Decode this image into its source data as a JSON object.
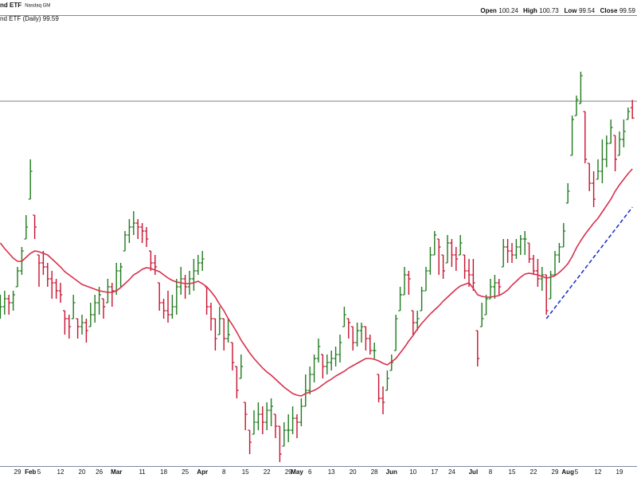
{
  "chart_data": {
    "type": "ohlc",
    "title": "nd ETF",
    "subtitle": "Nasdaq GM",
    "legend_label": "nd ETF (Daily) 99.59",
    "quote": [
      {
        "label": "Open",
        "value": 100.24
      },
      {
        "label": "High",
        "value": 100.73
      },
      {
        "label": "Low",
        "value": 99.54
      },
      {
        "label": "Close",
        "value": 99.59
      }
    ],
    "ylim": [
      78,
      106
    ],
    "up_color": "#1f7a1f",
    "down_color": "#c8102e",
    "categories": [
      null,
      null,
      null,
      null,
      "29",
      null,
      null,
      "Feb",
      null,
      "5",
      null,
      null,
      null,
      null,
      "12",
      null,
      null,
      null,
      null,
      "20",
      null,
      null,
      null,
      "26",
      null,
      null,
      null,
      "Mar",
      null,
      null,
      null,
      null,
      null,
      "11",
      null,
      null,
      null,
      null,
      "18",
      null,
      null,
      null,
      null,
      "25",
      null,
      null,
      null,
      "Apr",
      null,
      null,
      null,
      null,
      "8",
      null,
      null,
      null,
      null,
      "15",
      null,
      null,
      null,
      null,
      "22",
      null,
      null,
      null,
      null,
      "29",
      null,
      "May",
      null,
      null,
      "6",
      null,
      null,
      null,
      null,
      "13",
      null,
      null,
      null,
      null,
      "20",
      null,
      null,
      null,
      null,
      "28",
      null,
      null,
      null,
      "Jun",
      null,
      null,
      null,
      null,
      "10",
      null,
      null,
      null,
      null,
      "17",
      null,
      null,
      null,
      "24",
      null,
      null,
      null,
      null,
      "Jul",
      null,
      null,
      null,
      "8",
      null,
      null,
      null,
      null,
      "15",
      null,
      null,
      null,
      null,
      "22",
      null,
      null,
      null,
      null,
      "29",
      null,
      null,
      "Aug",
      null,
      "5",
      null,
      null,
      null,
      null,
      "12",
      null,
      null,
      null,
      null,
      "19",
      null,
      null,
      null
    ],
    "open": [
      87.5,
      87.75,
      88.25,
      88,
      89,
      90,
      92,
      94.5,
      93.5,
      91,
      90.5,
      90.25,
      89.5,
      89.25,
      88.75,
      87.5,
      87,
      87,
      87,
      86.5,
      86.75,
      86.5,
      87.25,
      88,
      88.25,
      88,
      89,
      88.75,
      90,
      91.25,
      92.25,
      92.75,
      93,
      92.75,
      92.5,
      91.25,
      90.5,
      89.25,
      88,
      87.5,
      87.25,
      87.75,
      89,
      89.5,
      89,
      89.5,
      90,
      90.5,
      89,
      87.75,
      87,
      86,
      87,
      85.75,
      85.5,
      84,
      83.25,
      81.75,
      80,
      79.75,
      80.5,
      81,
      80.5,
      81.25,
      81,
      80.25,
      79,
      80,
      80,
      80.75,
      80.5,
      81.5,
      82.5,
      83.5,
      84.5,
      84.75,
      84,
      84.25,
      84.5,
      84.75,
      86.5,
      87,
      86.5,
      85.5,
      86.25,
      86.5,
      85.75,
      85,
      83.5,
      82,
      82.5,
      83.75,
      85,
      87.5,
      88.5,
      89.75,
      87.5,
      86.75,
      87.5,
      88.75,
      90,
      91,
      92,
      91,
      90.5,
      91.75,
      91,
      91,
      91,
      90,
      89.75,
      86.25,
      86.5,
      87.25,
      88.25,
      89,
      89.25,
      90.25,
      91.5,
      91.25,
      91,
      91.5,
      92,
      91.75,
      90.75,
      90,
      89.5,
      89.75,
      88.25,
      89.75,
      91,
      91.5,
      94.25,
      97.25,
      99.75,
      100.5,
      100,
      96.75,
      95.5,
      95.75,
      96.25,
      97,
      98,
      98.5,
      97.25,
      98.25,
      99.5,
      100.24
    ],
    "high": [
      88.5,
      88.75,
      88.5,
      88.75,
      90.25,
      91.5,
      93.5,
      97,
      93.5,
      91,
      91.25,
      90.5,
      90,
      89.5,
      89.25,
      87.5,
      87.25,
      88.5,
      87,
      87.25,
      87,
      88,
      88.5,
      89,
      88.25,
      89.5,
      89.25,
      90.5,
      90.5,
      92.5,
      93.25,
      93.75,
      93.25,
      93,
      92.75,
      91.25,
      91,
      89.25,
      88.25,
      88.75,
      88.5,
      89.5,
      90.25,
      89.75,
      90,
      90.75,
      91,
      91.25,
      89,
      88,
      87,
      87.75,
      87,
      87,
      85.5,
      84,
      84.75,
      81.75,
      80,
      81.25,
      81.75,
      81.5,
      81.75,
      82,
      81,
      80.25,
      80.5,
      81,
      81.5,
      81,
      82,
      83.5,
      84,
      84.75,
      85.75,
      84.75,
      84.75,
      85,
      85.25,
      86,
      87.75,
      87,
      86.5,
      86.75,
      86.75,
      86.5,
      86,
      85.5,
      83.5,
      82.75,
      83.75,
      84.75,
      87.25,
      89,
      90.25,
      90,
      87.5,
      87.5,
      89,
      90.25,
      91.5,
      92.5,
      92,
      91,
      92.25,
      92,
      91.5,
      92.25,
      91,
      90.75,
      90.75,
      86.25,
      88,
      88.5,
      89.5,
      89.75,
      89.5,
      92,
      92,
      91.75,
      92,
      92.25,
      92.5,
      91.75,
      91,
      90.75,
      90.25,
      89.75,
      90,
      91.25,
      91.75,
      93,
      95.5,
      99.75,
      101,
      102.5,
      100,
      96.75,
      96.25,
      97,
      98.25,
      98.5,
      99.5,
      98.5,
      98.75,
      99.5,
      100.25,
      100.73
    ],
    "low": [
      87,
      87.25,
      87.25,
      87.5,
      89,
      89.75,
      92,
      94.5,
      92,
      89,
      89.75,
      89,
      88.25,
      88.25,
      88,
      86,
      85.75,
      87,
      85.75,
      86,
      85.5,
      86.5,
      86.75,
      87.25,
      87,
      88,
      87.75,
      88.5,
      89,
      91.25,
      91.75,
      92.25,
      92,
      91.75,
      91.5,
      90,
      89.75,
      87.5,
      87,
      86.75,
      87,
      87.25,
      88.5,
      88.25,
      88.5,
      88.75,
      89.75,
      90,
      87.25,
      86.25,
      85,
      86,
      85,
      85.5,
      83.75,
      82,
      83.25,
      80,
      78.5,
      79.75,
      80,
      79.75,
      80,
      80.25,
      79.5,
      78,
      79,
      79.25,
      79.75,
      79.5,
      80.25,
      81.5,
      82.25,
      83,
      84.25,
      83.25,
      83.5,
      83.75,
      84,
      84.25,
      86.5,
      85.75,
      85,
      85.25,
      85.5,
      85,
      84.75,
      84.5,
      81.75,
      81,
      82.5,
      83.75,
      85,
      87.5,
      88.5,
      88.5,
      86,
      86.25,
      87.5,
      88.75,
      89.75,
      91,
      89.75,
      89.5,
      90.5,
      90.25,
      90,
      91,
      89.5,
      89,
      88.75,
      84,
      86.5,
      87.25,
      88.25,
      88.25,
      88.5,
      90.25,
      90.5,
      90.5,
      90.75,
      91,
      91,
      90.5,
      89.75,
      89,
      88.75,
      87.25,
      88.25,
      89.75,
      90.5,
      91.5,
      94.25,
      97.25,
      99.75,
      100.5,
      96.75,
      95,
      94,
      95.75,
      95.5,
      96.5,
      98,
      96.25,
      97.25,
      97.75,
      99.5,
      99.54
    ],
    "close": [
      87.75,
      88.25,
      88,
      88.5,
      90,
      91.25,
      92.75,
      96.25,
      92.75,
      90.5,
      90.25,
      89.5,
      89.25,
      88.75,
      88.5,
      87,
      86.5,
      88,
      86.5,
      86.75,
      86.25,
      87.25,
      88,
      88.5,
      87.75,
      89,
      88.75,
      90,
      90.25,
      92.25,
      92.75,
      93,
      92.75,
      92.5,
      92,
      90.5,
      90.25,
      88,
      87.5,
      87.25,
      87.75,
      89,
      89.5,
      89,
      89.5,
      90,
      90.5,
      90.75,
      87.75,
      87,
      85.75,
      87,
      85.75,
      86,
      84.25,
      82.5,
      84,
      81,
      79.25,
      80.5,
      81,
      80.5,
      81.25,
      81.5,
      80.25,
      78.5,
      80,
      80,
      80.75,
      80.5,
      81.5,
      82.5,
      83.5,
      84.5,
      85.25,
      84,
      84.25,
      84.5,
      84.75,
      85.5,
      87.25,
      86.75,
      85.5,
      86.25,
      86.5,
      85.75,
      85,
      85,
      82,
      81.75,
      83.25,
      84.25,
      87,
      88.5,
      89.75,
      89.5,
      86.75,
      87,
      88.75,
      90,
      91,
      92.25,
      91.5,
      90,
      91.75,
      91,
      90.75,
      91.75,
      90,
      89.75,
      89.25,
      84.5,
      87,
      88.25,
      89,
      89.25,
      89,
      91.5,
      91.25,
      91,
      91.5,
      92,
      92,
      90.75,
      90,
      89.5,
      89.75,
      87.5,
      89.75,
      91,
      91.5,
      92.5,
      95,
      99.5,
      100.75,
      102.25,
      97,
      95.5,
      94.5,
      96.25,
      97,
      98,
      99,
      97,
      98.25,
      98.75,
      100,
      99.59
    ],
    "moving_average": {
      "color": "#d9304c",
      "values": [
        91.75,
        91.4,
        91.1,
        90.8,
        90.6,
        90.6,
        90.85,
        91.1,
        91.25,
        91.2,
        91.1,
        91,
        90.75,
        90.5,
        90.25,
        89.95,
        89.75,
        89.55,
        89.35,
        89.15,
        89.05,
        88.95,
        88.85,
        88.75,
        88.7,
        88.65,
        88.65,
        88.75,
        88.95,
        89.2,
        89.45,
        89.75,
        89.9,
        90.1,
        90.2,
        90.15,
        90.05,
        89.95,
        89.75,
        89.55,
        89.4,
        89.3,
        89.25,
        89.2,
        89.2,
        89.25,
        89.35,
        89.2,
        89,
        88.7,
        88.35,
        87.9,
        87.5,
        87,
        86.6,
        86.15,
        85.65,
        85.25,
        84.85,
        84.5,
        84.2,
        83.9,
        83.65,
        83.45,
        83.2,
        82.95,
        82.7,
        82.5,
        82.3,
        82.2,
        82.15,
        82.3,
        82.4,
        82.5,
        82.65,
        82.85,
        83.05,
        83.2,
        83.4,
        83.55,
        83.7,
        83.9,
        84.05,
        84.2,
        84.35,
        84.5,
        84.5,
        84.45,
        84.35,
        84.2,
        84.1,
        84.3,
        84.5,
        84.85,
        85.2,
        85.6,
        85.95,
        86.35,
        86.7,
        87,
        87.3,
        87.55,
        87.8,
        88.1,
        88.35,
        88.6,
        88.85,
        89.05,
        89.15,
        89.25,
        88.9,
        88.5,
        88.4,
        88.35,
        88.35,
        88.4,
        88.45,
        88.6,
        88.8,
        89.1,
        89.35,
        89.6,
        89.8,
        89.85,
        89.8,
        89.75,
        89.65,
        89.55,
        89.6,
        89.7,
        89.9,
        90.15,
        90.45,
        90.9,
        91.45,
        91.9,
        92.3,
        92.65,
        93,
        93.3,
        93.7,
        94.1,
        94.5,
        95,
        95.4,
        95.75,
        96.1,
        96.4
      ]
    },
    "trendline": {
      "color": "#2233cc",
      "values": [
        null,
        null,
        null,
        null,
        null,
        null,
        null,
        null,
        null,
        null,
        null,
        null,
        null,
        null,
        null,
        null,
        null,
        null,
        null,
        null,
        null,
        null,
        null,
        null,
        null,
        null,
        null,
        null,
        null,
        null,
        null,
        null,
        null,
        null,
        null,
        null,
        null,
        null,
        null,
        null,
        null,
        null,
        null,
        null,
        null,
        null,
        null,
        null,
        null,
        null,
        null,
        null,
        null,
        null,
        null,
        null,
        null,
        null,
        null,
        null,
        null,
        null,
        null,
        null,
        null,
        null,
        null,
        null,
        null,
        null,
        null,
        null,
        null,
        null,
        null,
        null,
        null,
        null,
        null,
        null,
        null,
        null,
        null,
        null,
        null,
        null,
        null,
        null,
        null,
        null,
        null,
        null,
        null,
        null,
        null,
        null,
        null,
        null,
        null,
        null,
        null,
        null,
        null,
        null,
        null,
        null,
        null,
        null,
        null,
        null,
        null,
        null,
        null,
        null,
        null,
        null,
        null,
        null,
        null,
        null,
        null,
        null,
        null,
        null,
        null,
        null,
        null,
        87,
        87.35,
        87.7,
        88.05,
        88.4,
        88.75,
        89.1,
        89.45,
        89.8,
        90.15,
        90.5,
        90.85,
        91.2,
        91.55,
        91.9,
        92.25,
        92.6,
        92.95,
        93.3,
        93.65,
        94
      ]
    },
    "reference_line": {
      "value": 100.65,
      "color": "#999999"
    }
  }
}
